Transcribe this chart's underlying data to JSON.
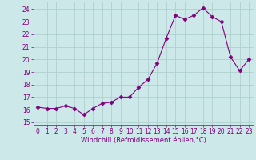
{
  "x": [
    0,
    1,
    2,
    3,
    4,
    5,
    6,
    7,
    8,
    9,
    10,
    11,
    12,
    13,
    14,
    15,
    16,
    17,
    18,
    19,
    20,
    21,
    22,
    23
  ],
  "y": [
    16.2,
    16.1,
    16.1,
    16.3,
    16.1,
    15.6,
    16.1,
    16.5,
    16.6,
    17.0,
    17.0,
    17.8,
    18.4,
    19.7,
    21.7,
    23.5,
    23.2,
    23.5,
    24.1,
    23.4,
    23.0,
    20.2,
    19.1,
    20.0
  ],
  "line_color": "#800080",
  "marker": "D",
  "marker_size": 2.5,
  "bg_color": "#cce8e8",
  "grid_color": "#aacccc",
  "xlabel": "Windchill (Refroidissement éolien,°C)",
  "xlabel_color": "#800080",
  "tick_color": "#800080",
  "ylim": [
    14.8,
    24.6
  ],
  "yticks": [
    15,
    16,
    17,
    18,
    19,
    20,
    21,
    22,
    23,
    24
  ],
  "xlim": [
    -0.5,
    23.5
  ],
  "xticks": [
    0,
    1,
    2,
    3,
    4,
    5,
    6,
    7,
    8,
    9,
    10,
    11,
    12,
    13,
    14,
    15,
    16,
    17,
    18,
    19,
    20,
    21,
    22,
    23
  ]
}
